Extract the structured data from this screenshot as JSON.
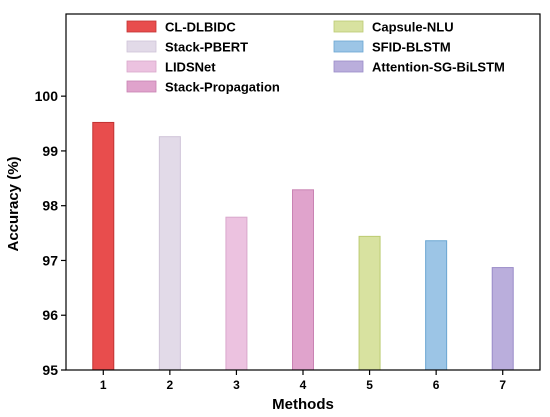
{
  "chart_data": {
    "type": "bar",
    "xlabel": "Methods",
    "ylabel": "Accuracy (%)",
    "ylim": [
      95,
      101.5
    ],
    "yticks": [
      95,
      96,
      97,
      98,
      99,
      100
    ],
    "categories": [
      "1",
      "2",
      "3",
      "4",
      "5",
      "6",
      "7"
    ],
    "grid": false,
    "legend_position": "top",
    "series": [
      {
        "name": "CL-DLBIDC",
        "value": 99.52,
        "color": "#e84d4d",
        "edge": "#c23333"
      },
      {
        "name": "Stack-PBERT",
        "value": 99.26,
        "color": "#e2dae8",
        "edge": "#cfc4d8"
      },
      {
        "name": "LIDSNet",
        "value": 97.79,
        "color": "#ecc2e0",
        "edge": "#d9a8cc"
      },
      {
        "name": "Stack-Propagation",
        "value": 98.29,
        "color": "#e0a3cc",
        "edge": "#c983b3"
      },
      {
        "name": "Capsule-NLU",
        "value": 97.44,
        "color": "#d8e2a0",
        "edge": "#bccb72"
      },
      {
        "name": "SFID-BLSTM",
        "value": 97.36,
        "color": "#9cc5e6",
        "edge": "#6aa6d2"
      },
      {
        "name": "Attention-SG-BiLSTM",
        "value": 96.87,
        "color": "#baaedc",
        "edge": "#9a8cc8"
      }
    ]
  }
}
